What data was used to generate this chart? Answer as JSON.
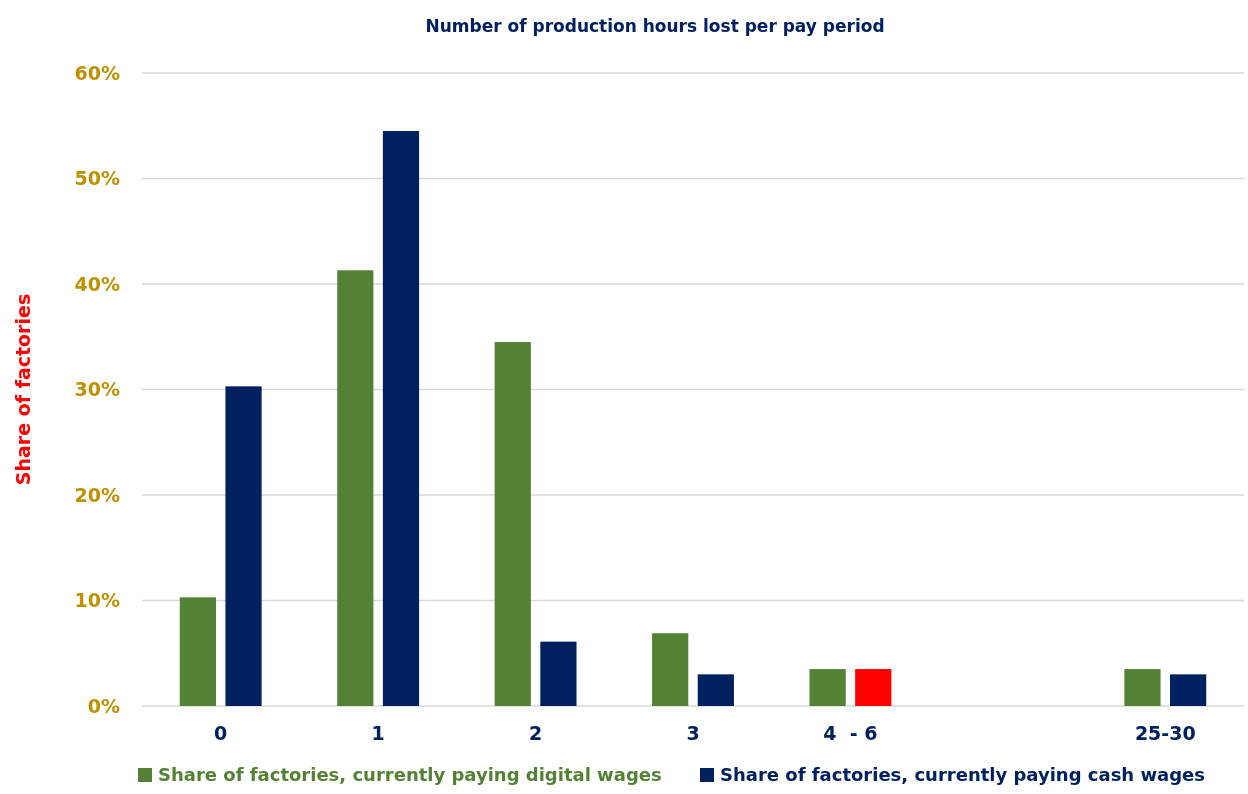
{
  "chart_data": {
    "type": "bar",
    "title": "Number of production hours lost per pay period",
    "ylabel": "Share of factories",
    "categories": [
      "0",
      "1",
      "2",
      "3",
      "4  - 6",
      null,
      "25-30"
    ],
    "series": [
      {
        "name": "Share of factories, currently paying digital wages",
        "color": "#548235",
        "values": [
          10.3,
          41.3,
          34.5,
          6.9,
          3.5,
          null,
          3.5
        ]
      },
      {
        "name": "Share of factories, currently paying cash wages",
        "color": "#002060",
        "colors": [
          "#002060",
          "#002060",
          "#002060",
          "#002060",
          "#ff0000",
          null,
          "#002060"
        ],
        "values": [
          30.3,
          54.5,
          6.1,
          3.0,
          3.5,
          null,
          3.0
        ]
      }
    ],
    "ylim": [
      0,
      60
    ],
    "yticks": [
      {
        "value": 0,
        "label": "0%"
      },
      {
        "value": 10,
        "label": "10%"
      },
      {
        "value": 20,
        "label": "20%"
      },
      {
        "value": 30,
        "label": "30%"
      },
      {
        "value": 40,
        "label": "40%"
      },
      {
        "value": 50,
        "label": "50%"
      },
      {
        "value": 60,
        "label": "60%"
      }
    ],
    "grid": "y",
    "legend": "bottom"
  }
}
